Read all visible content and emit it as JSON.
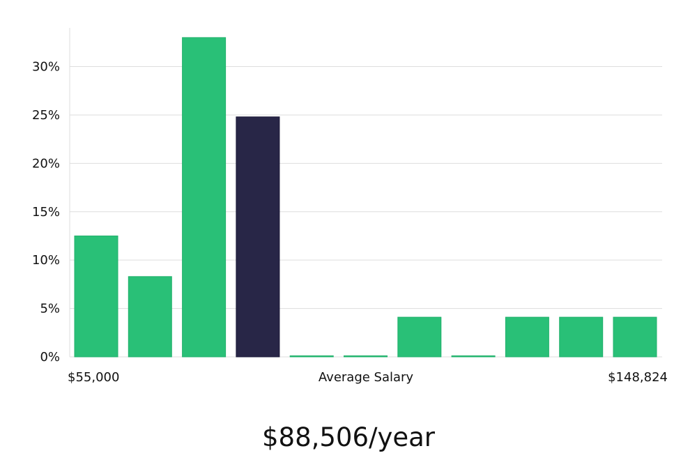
{
  "chart_data": {
    "type": "bar",
    "categories": [
      "",
      "",
      "",
      "",
      "",
      "",
      "",
      "",
      "",
      "",
      ""
    ],
    "values": [
      12.5,
      8.3,
      33.0,
      24.8,
      0,
      0,
      4.1,
      0,
      4.1,
      4.1,
      4.1
    ],
    "highlight_index": 3,
    "xlabel": "Average Salary",
    "range_min_label": "$55,000",
    "range_max_label": "$148,824",
    "ylabel": "",
    "ylim": [
      0,
      34
    ],
    "y_ticks": [
      0,
      5,
      10,
      15,
      20,
      25,
      30
    ],
    "y_tick_labels": [
      "0%",
      "5%",
      "10%",
      "15%",
      "20%",
      "25%",
      "30%"
    ],
    "grid": true,
    "colors": {
      "bar": "#29c077",
      "highlight": "#282647",
      "grid": "#dddddd",
      "axis": "#dddddd"
    }
  },
  "salary": {
    "average_label": "$88,506/year"
  }
}
